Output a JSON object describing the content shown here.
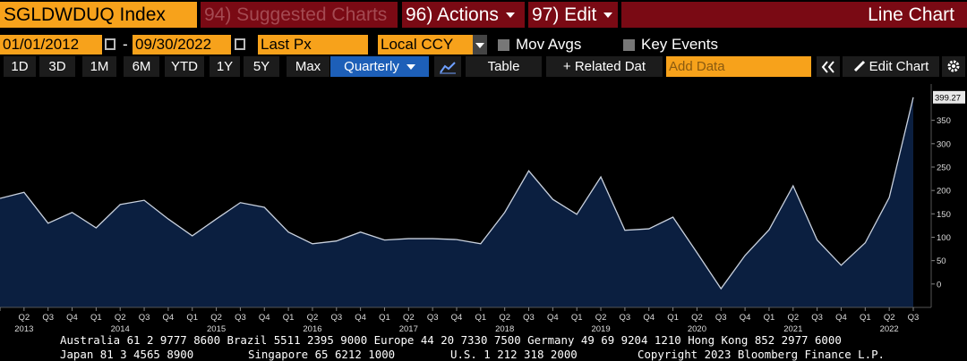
{
  "header": {
    "ticker": "SGLDWDUQ Index",
    "suggested": "94) Suggested Charts",
    "actions": "96) Actions",
    "edit": "97) Edit",
    "view": "Line Chart"
  },
  "controls": {
    "start_date": "01/01/2012",
    "separator": "-",
    "end_date": "09/30/2022",
    "field": "Last Px",
    "currency": "Local CCY",
    "mov_avgs": "Mov Avgs",
    "key_events": "Key Events"
  },
  "ranges": [
    "1D",
    "3D",
    "1M",
    "6M",
    "YTD",
    "1Y",
    "5Y",
    "Max"
  ],
  "toolbar": {
    "frequency": "Quarterly",
    "table": "Table",
    "related": "+ Related Dat",
    "add_data": "Add Data",
    "edit_chart": "Edit Chart"
  },
  "chart_data": {
    "type": "area",
    "color": "#0b1f40",
    "line_color": "#c9d1de",
    "grid": false,
    "categories": [
      null,
      "Q2",
      "Q3",
      "Q4",
      "Q1",
      "Q2",
      "Q3",
      "Q4",
      "Q1",
      "Q2",
      "Q3",
      "Q4",
      "Q1",
      "Q2",
      "Q3",
      "Q4",
      "Q1",
      "Q2",
      "Q3",
      "Q4",
      "Q1",
      "Q2",
      "Q3",
      "Q4",
      "Q1",
      "Q2",
      "Q3",
      "Q4",
      "Q1",
      "Q2",
      "Q3",
      "Q4",
      "Q1",
      "Q2",
      "Q3",
      "Q4",
      "Q1",
      "Q2",
      "Q3"
    ],
    "years": [
      null,
      "2013",
      null,
      null,
      null,
      "2014",
      null,
      null,
      null,
      "2015",
      null,
      null,
      null,
      "2016",
      null,
      null,
      null,
      "2017",
      null,
      null,
      null,
      "2018",
      null,
      null,
      null,
      "2019",
      null,
      null,
      null,
      "2020",
      null,
      null,
      null,
      "2021",
      null,
      null,
      null,
      "2022",
      null
    ],
    "values": [
      183,
      196,
      130,
      153,
      120,
      170,
      179,
      139,
      103,
      139,
      174,
      164,
      111,
      86,
      92,
      111,
      94,
      97,
      97,
      95,
      86,
      153,
      242,
      181,
      149,
      229,
      115,
      118,
      143,
      67,
      -10,
      61,
      116,
      210,
      94,
      40,
      88,
      185,
      399.27
    ],
    "last_value_label": "399.27",
    "ylim": [
      -50,
      420
    ],
    "yticks": [
      0,
      50,
      100,
      150,
      200,
      250,
      300,
      350
    ]
  },
  "footer": {
    "line1": "Australia 61 2 9777 8600 Brazil 5511 2395 9000 Europe 44 20 7330 7500 Germany 49 69 9204 1210 Hong Kong 852 2977 6000",
    "line2": [
      "Japan 81 3 4565 8900",
      "Singapore 65 6212 1000",
      "U.S. 1 212 318 2000",
      "Copyright 2023 Bloomberg Finance L.P."
    ]
  }
}
